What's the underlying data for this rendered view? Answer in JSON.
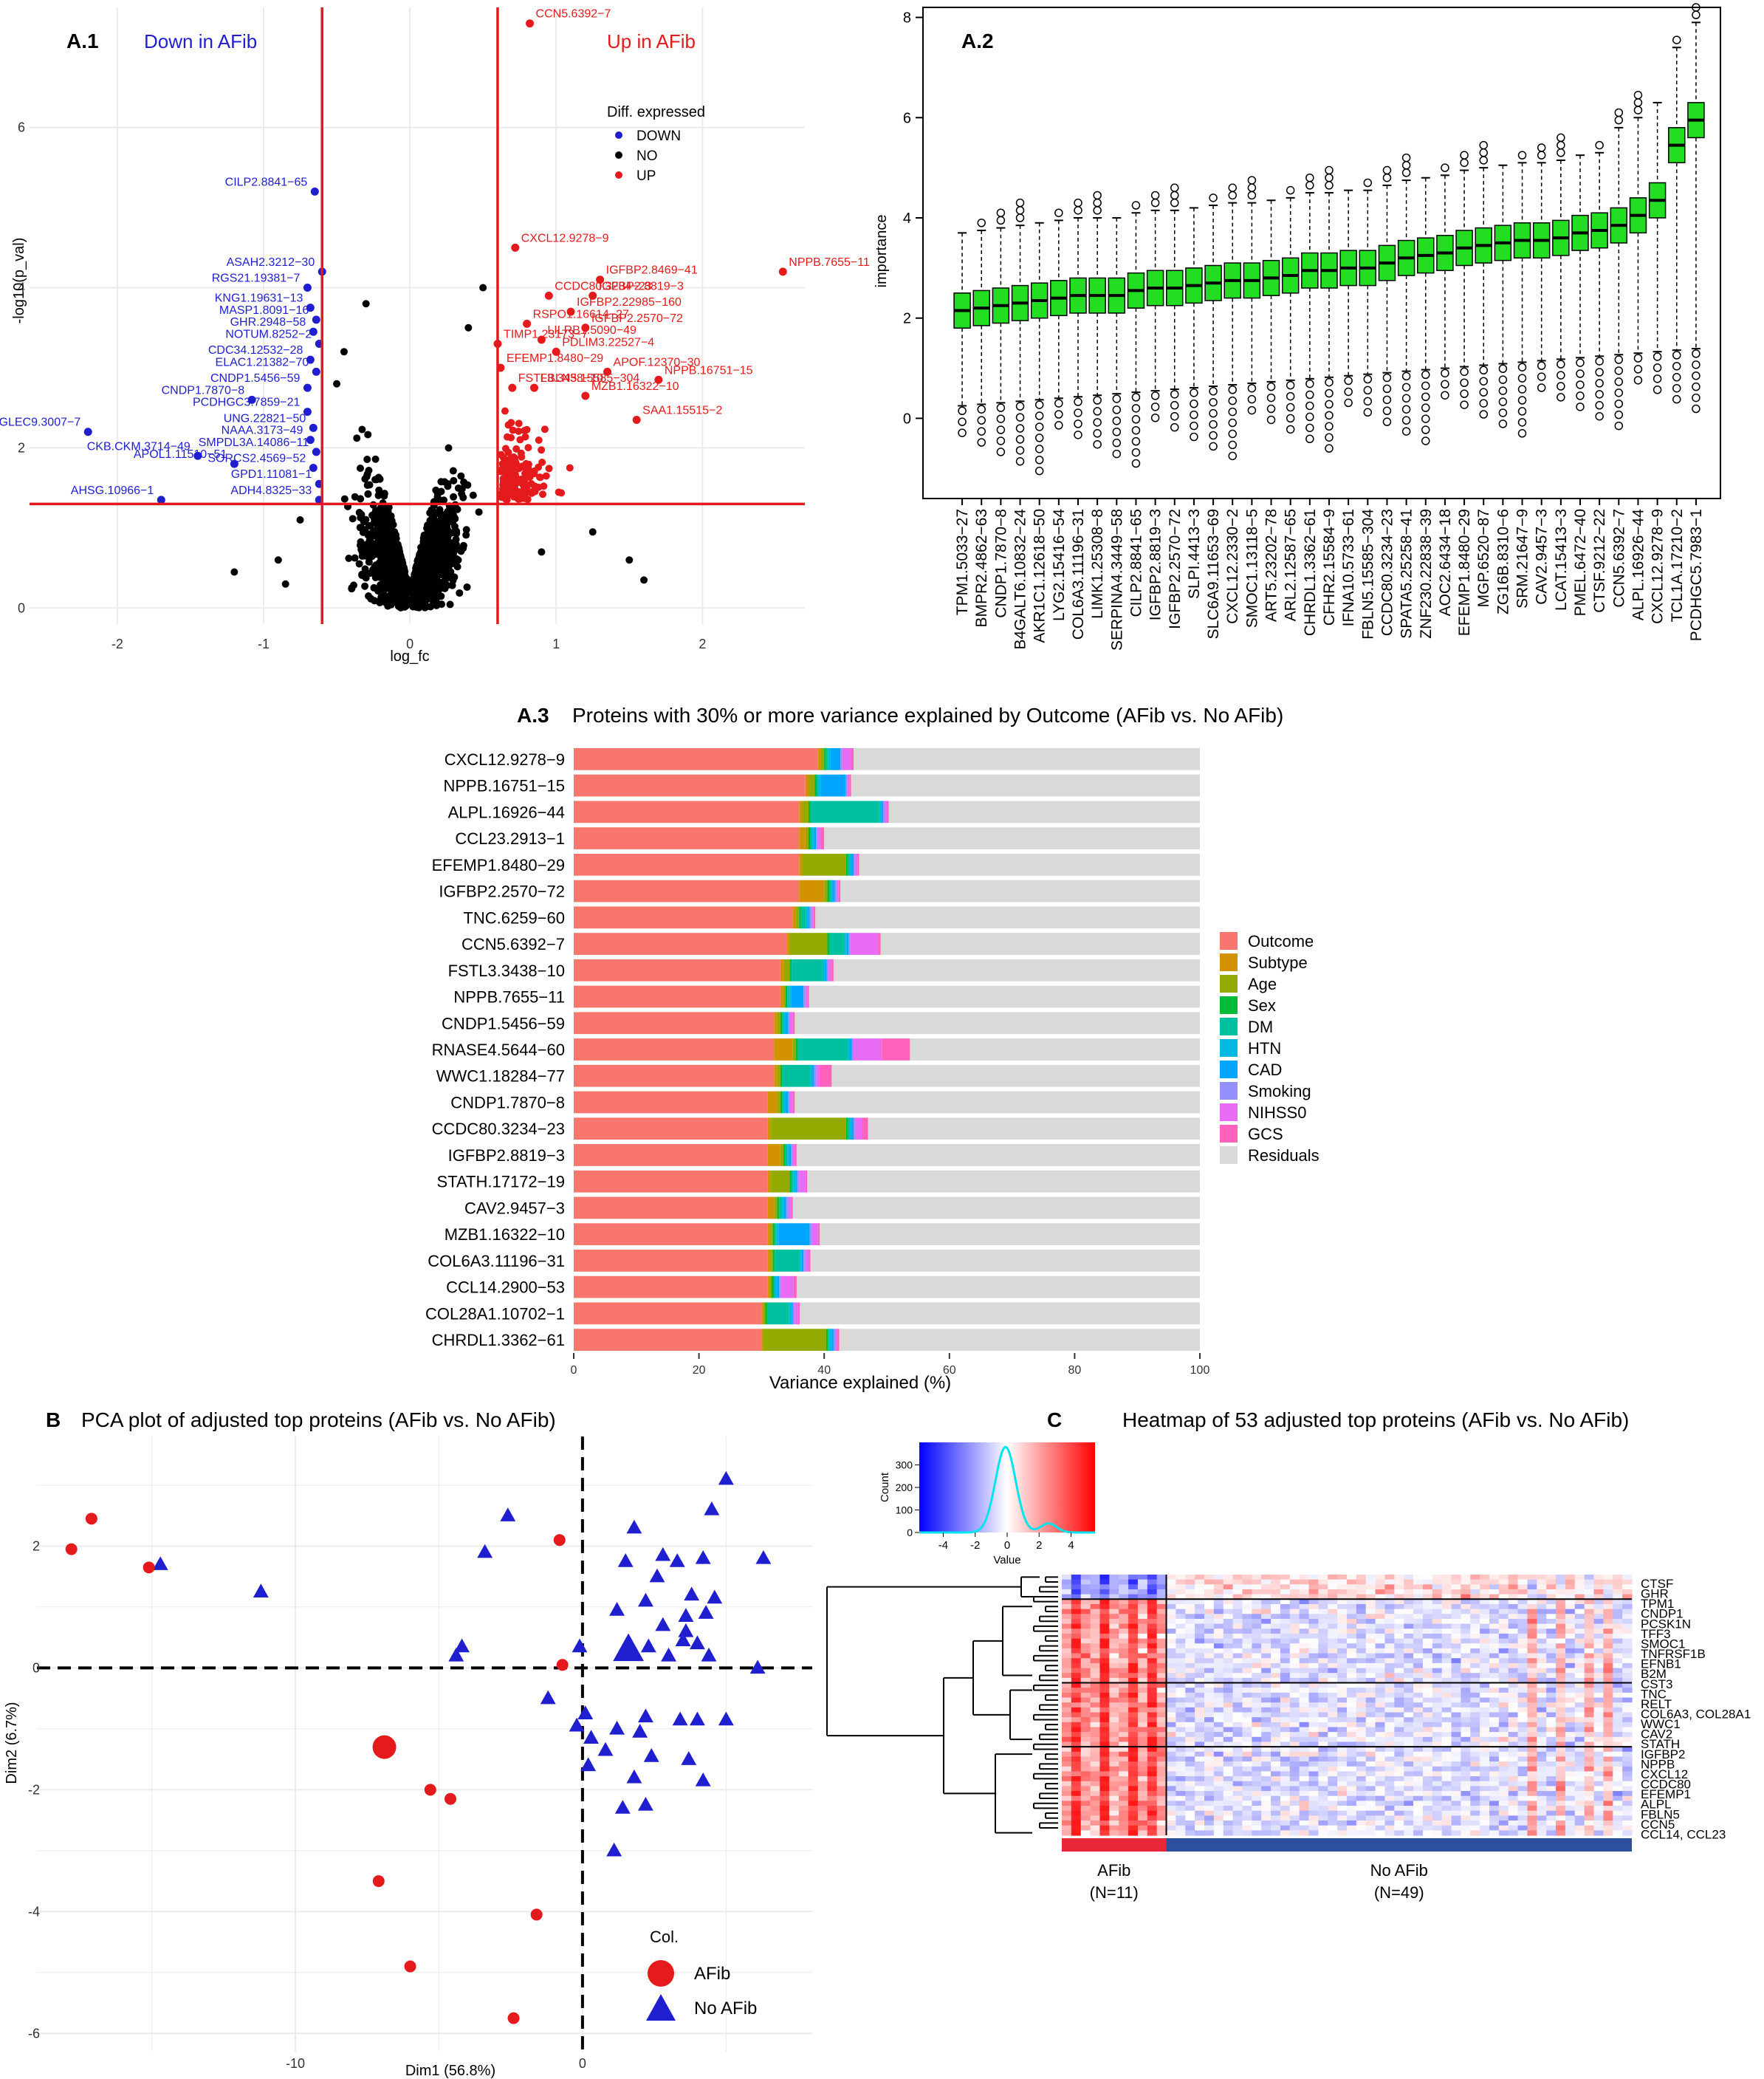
{
  "colors": {
    "red": "#e41a1c",
    "blue": "#1f1fcf",
    "black": "#000000",
    "green": "#22dd22",
    "heatRed": "#e8283a",
    "heatBlue": "#2c4fa0",
    "grid": "#ebebeb"
  },
  "chart_data": [
    {
      "panel": "A.1",
      "type": "scatter",
      "title": "A.1",
      "xlabel": "log_fc",
      "ylabel": "-log10(p_val)",
      "xlim": [
        -2.6,
        2.7
      ],
      "ylim": [
        -0.2,
        7.5
      ],
      "xticks": [
        "-2",
        "-1",
        "0",
        "1",
        "2"
      ],
      "yticks": [
        "0",
        "2",
        "4",
        "6"
      ],
      "xtick_values": [
        -2,
        -1,
        0,
        1,
        2
      ],
      "ytick_values": [
        0,
        2,
        4,
        6
      ],
      "thresholds": {
        "fc": [
          -0.6,
          0.6
        ],
        "p": 1.3
      },
      "region_labels": {
        "down": "Down in AFib",
        "up": "Up in AFib"
      },
      "legend": {
        "title": "Diff. expressed",
        "labels": [
          "DOWN",
          "NO",
          "UP"
        ]
      },
      "down_points": [
        {
          "label": "CILP2.8841−65",
          "x": -0.65,
          "y": 5.2
        },
        {
          "label": "ASAH2.3212−30",
          "x": -0.6,
          "y": 4.2
        },
        {
          "label": "RGS21.19381−7",
          "x": -0.7,
          "y": 4.0
        },
        {
          "label": "KNG1.19631−13",
          "x": -0.68,
          "y": 3.75
        },
        {
          "label": "MASP1.8091−16",
          "x": -0.64,
          "y": 3.6
        },
        {
          "label": "GHR.2948−58",
          "x": -0.66,
          "y": 3.45
        },
        {
          "label": "NOTUM.8252−2",
          "x": -0.62,
          "y": 3.3
        },
        {
          "label": "CDC34.12532−28",
          "x": -0.68,
          "y": 3.1
        },
        {
          "label": "ELAC1.21382−70",
          "x": -0.64,
          "y": 2.95
        },
        {
          "label": "CNDP1.5456−59",
          "x": -0.7,
          "y": 2.75
        },
        {
          "label": "CNDP1.7870−8",
          "x": -1.08,
          "y": 2.6
        },
        {
          "label": "PCDHGC3.7859−21",
          "x": -0.7,
          "y": 2.45
        },
        {
          "label": "SIGLEC9.3007−7",
          "x": -2.2,
          "y": 2.2
        },
        {
          "label": "UNG.22821−50",
          "x": -0.66,
          "y": 2.25
        },
        {
          "label": "NAAA.3173−49",
          "x": -0.68,
          "y": 2.1
        },
        {
          "label": "CKB.CKM.3714−49",
          "x": -1.45,
          "y": 1.9
        },
        {
          "label": "SMPDL3A.14086−11",
          "x": -0.64,
          "y": 1.95
        },
        {
          "label": "APOL1.11510−51",
          "x": -1.2,
          "y": 1.8
        },
        {
          "label": "SORCS2.4569−52",
          "x": -0.66,
          "y": 1.75
        },
        {
          "label": "GPD1.11081−1",
          "x": -0.62,
          "y": 1.55
        },
        {
          "label": "AHSG.10966−1",
          "x": -1.7,
          "y": 1.35
        },
        {
          "label": "ADH4.8325−33",
          "x": -0.62,
          "y": 1.35
        }
      ],
      "up_points": [
        {
          "label": "CCN5.6392−7",
          "x": 0.82,
          "y": 7.3
        },
        {
          "label": "CXCL12.9278−9",
          "x": 0.72,
          "y": 4.5
        },
        {
          "label": "NPPB.7655−11",
          "x": 2.55,
          "y": 4.2
        },
        {
          "label": "IGFBP2.8469−41",
          "x": 1.3,
          "y": 4.1
        },
        {
          "label": "IGFBP2.8819−3",
          "x": 1.25,
          "y": 3.9
        },
        {
          "label": "CCDC80.3234−23",
          "x": 0.95,
          "y": 3.9
        },
        {
          "label": "IGFBP2.22985−160",
          "x": 1.1,
          "y": 3.7
        },
        {
          "label": "IGFBP2.2570−72",
          "x": 1.2,
          "y": 3.5
        },
        {
          "label": "RSPO1.16614−27",
          "x": 0.8,
          "y": 3.55
        },
        {
          "label": "LILRB1.5090−49",
          "x": 0.9,
          "y": 3.35
        },
        {
          "label": "TIMP1.23173−7",
          "x": 0.6,
          "y": 3.3
        },
        {
          "label": "PDLIM3.22527−4",
          "x": 1.0,
          "y": 3.2
        },
        {
          "label": "EFEMP1.8480−29",
          "x": 0.62,
          "y": 3.0
        },
        {
          "label": "APOF.12370−30",
          "x": 1.35,
          "y": 2.95
        },
        {
          "label": "NPPB.16751−15",
          "x": 1.7,
          "y": 2.85
        },
        {
          "label": "FSTL3.3438−10",
          "x": 0.7,
          "y": 2.75
        },
        {
          "label": "FBLN5.15585−304",
          "x": 0.85,
          "y": 2.75
        },
        {
          "label": "MZB1.16322−10",
          "x": 1.2,
          "y": 2.65
        },
        {
          "label": "SAA1.15515−2",
          "x": 1.55,
          "y": 2.35
        }
      ]
    },
    {
      "panel": "A.2",
      "type": "box",
      "title": "A.2",
      "ylabel": "importance",
      "ylim": [
        -1.6,
        8.2
      ],
      "yticks": [
        "0",
        "2",
        "4",
        "6",
        "8"
      ],
      "ytick_values": [
        0,
        2,
        4,
        6,
        8
      ],
      "categories": [
        "TPM1.5033−27",
        "BMPR2.4862−63",
        "CNDP1.7870−8",
        "B4GALT6.10832−24",
        "AKR1C1.12618−50",
        "LYG2.15416−54",
        "COL6A3.11196−31",
        "LIMK1.25308−8",
        "SERPINA4.3449−58",
        "CILP2.8841−65",
        "IGFBP2.8819−3",
        "IGFBP2.2570−72",
        "SLPI.4413−3",
        "SLC6A9.11653−69",
        "CXCL12.2330−2",
        "SMOC1.13118−5",
        "ART5.23202−78",
        "ARL2.12587−65",
        "CHRDL1.3362−61",
        "CFHR2.15584−9",
        "IFNA10.5733−61",
        "FBLN5.15585−304",
        "CCDC80.3234−23",
        "SPATA5.25258−41",
        "ZNF230.22838−39",
        "AOC2.6434−18",
        "EFEMP1.8480−29",
        "MGP.6520−87",
        "ZG16B.8310−6",
        "SRM.21647−9",
        "CAV2.9457−3",
        "LCAT.15413−3",
        "PMEL.6472−40",
        "CTSF.9212−22",
        "CCN5.6392−7",
        "ALPL.16926−44",
        "CXCL12.9278−9",
        "TCL1A.17210−2",
        "PCDHGC5.7983−1"
      ],
      "medians": [
        2.15,
        2.2,
        2.25,
        2.3,
        2.35,
        2.4,
        2.45,
        2.45,
        2.45,
        2.55,
        2.6,
        2.6,
        2.65,
        2.7,
        2.75,
        2.75,
        2.8,
        2.85,
        2.95,
        2.95,
        3.0,
        3.0,
        3.1,
        3.2,
        3.25,
        3.3,
        3.4,
        3.45,
        3.5,
        3.55,
        3.55,
        3.6,
        3.7,
        3.75,
        3.85,
        4.05,
        4.35,
        5.45,
        5.95
      ]
    },
    {
      "panel": "A.3",
      "type": "bar",
      "orientation": "horizontal",
      "stacked": true,
      "title": "Proteins with 30% or more variance explained by Outcome (AFib vs. No AFib)",
      "panel_tag": "A.3",
      "xlabel": "Variance explained (%)",
      "xlim": [
        0,
        100
      ],
      "xticks": [
        "0",
        "20",
        "40",
        "60",
        "80",
        "100"
      ],
      "xtick_values": [
        0,
        20,
        40,
        60,
        80,
        100
      ],
      "categories": [
        "CXCL12.9278−9",
        "NPPB.16751−15",
        "ALPL.16926−44",
        "CCL23.2913−1",
        "EFEMP1.8480−29",
        "IGFBP2.2570−72",
        "TNC.6259−60",
        "CCN5.6392−7",
        "FSTL3.3438−10",
        "NPPB.7655−11",
        "CNDP1.5456−59",
        "RNASE4.5644−60",
        "WWC1.18284−77",
        "CNDP1.7870−8",
        "CCDC80.3234−23",
        "IGFBP2.8819−3",
        "STATH.17172−19",
        "CAV2.9457−3",
        "MZB1.16322−10",
        "COL6A3.11196−31",
        "CCL14.2900−53",
        "COL28A1.10702−1",
        "CHRDL1.3362−61"
      ],
      "series": [
        {
          "name": "Outcome",
          "color": "#f8766d",
          "values": [
            39,
            37,
            36,
            36,
            36,
            36,
            35,
            34,
            33,
            33,
            32,
            32,
            32,
            31,
            31,
            31,
            31,
            31,
            31,
            31,
            31,
            30,
            30
          ]
        },
        {
          "name": "Subtype",
          "color": "#d39200",
          "values": [
            0.5,
            0.5,
            0.5,
            1,
            0.5,
            4,
            0.5,
            0.5,
            0.5,
            0.5,
            0.5,
            3,
            0.5,
            1.5,
            0.5,
            2,
            0.5,
            1,
            0.5,
            0.5,
            0.3,
            0.3,
            0.3
          ]
        },
        {
          "name": "Age",
          "color": "#93aa00",
          "values": [
            0.5,
            1,
            1,
            0.5,
            7,
            0.5,
            0.5,
            6,
            1,
            0.3,
            0.5,
            0.5,
            0.5,
            0.5,
            12,
            0.5,
            3,
            0.5,
            0.3,
            0.3,
            0.3,
            0.3,
            10
          ]
        },
        {
          "name": "Sex",
          "color": "#00ba38",
          "values": [
            0.3,
            0.3,
            0.3,
            0.3,
            0.3,
            0.3,
            0.3,
            0.3,
            0.3,
            0.3,
            0.3,
            0.3,
            0.3,
            0.3,
            0.3,
            0.3,
            0.3,
            0.3,
            0.3,
            0.3,
            0.3,
            0.3,
            0.3
          ]
        },
        {
          "name": "DM",
          "color": "#00c19f",
          "values": [
            0.3,
            0.3,
            11,
            0.3,
            0.3,
            0.3,
            0.8,
            2.5,
            5,
            0.3,
            0.3,
            8,
            4.5,
            0.3,
            0.3,
            0.3,
            0.3,
            0.5,
            0.3,
            4,
            0.3,
            3.5,
            0.3
          ]
        },
        {
          "name": "HTN",
          "color": "#00b9e3",
          "values": [
            0.5,
            0.3,
            0.3,
            0.3,
            0.3,
            0.3,
            0.3,
            0.3,
            0.3,
            0.3,
            0.3,
            0.3,
            0.3,
            0.3,
            0.3,
            0.3,
            0.3,
            0.3,
            0.3,
            0.3,
            0.3,
            0.3,
            0.3
          ]
        },
        {
          "name": "CAD",
          "color": "#00a5ff",
          "values": [
            1.5,
            4,
            0.3,
            0.3,
            0.3,
            0.3,
            0.3,
            0.3,
            0.3,
            2,
            0.3,
            0.3,
            0.3,
            0.3,
            0.3,
            0.3,
            0.3,
            0.3,
            5,
            0.3,
            0.3,
            0.3,
            0.3
          ]
        },
        {
          "name": "Smoking",
          "color": "#9590ff",
          "values": [
            0.3,
            0.3,
            0.3,
            0.3,
            0.3,
            0.3,
            0.3,
            0.3,
            0.3,
            0.3,
            0.3,
            0.3,
            0.3,
            0.3,
            0.3,
            0.3,
            0.3,
            0.3,
            0.3,
            0.3,
            0.3,
            0.3,
            0.3
          ]
        },
        {
          "name": "NIHSS0",
          "color": "#e76bf3",
          "values": [
            1.5,
            0.3,
            0.3,
            0.5,
            0.3,
            0.3,
            0.3,
            4.5,
            0.5,
            0.3,
            0.5,
            4.5,
            0.5,
            0.5,
            1,
            0.3,
            1,
            0.5,
            1,
            0.5,
            2,
            0.5,
            0.3
          ]
        },
        {
          "name": "GCS",
          "color": "#ff62bc",
          "values": [
            0.3,
            0.3,
            0.3,
            0.5,
            0.3,
            0.3,
            0.3,
            0.3,
            0.3,
            0.3,
            0.3,
            4.5,
            2,
            0.3,
            1,
            0.3,
            0.3,
            0.3,
            0.3,
            0.3,
            0.5,
            0.3,
            0.3
          ]
        }
      ],
      "residual_label": "Residuals",
      "residual_color": "#d9d9d9"
    },
    {
      "panel": "B",
      "type": "scatter",
      "title": "PCA plot of adjusted top proteins (AFib vs. No AFib)",
      "panel_tag": "B",
      "xlabel": "Dim1 (56.8%)",
      "ylabel": "Dim2 (6.7%)",
      "xlim": [
        -19,
        8
      ],
      "ylim": [
        -6.3,
        3.8
      ],
      "xticks": [
        "-10",
        "0"
      ],
      "xtick_values": [
        -10,
        0
      ],
      "yticks": [
        "2",
        "0",
        "-2",
        "-4",
        "-6"
      ],
      "ytick_values": [
        2,
        0,
        -2,
        -4,
        -6
      ],
      "legend": {
        "title": "Col.",
        "labels": [
          "AFib",
          "No AFib"
        ]
      },
      "afib": [
        [
          -17.1,
          2.45
        ],
        [
          -17.8,
          1.95
        ],
        [
          -15.1,
          1.65
        ],
        [
          -0.8,
          2.1
        ],
        [
          -0.7,
          0.05
        ],
        [
          -6.9,
          -1.3
        ],
        [
          -5.3,
          -2.0
        ],
        [
          -4.6,
          -2.15
        ],
        [
          -7.1,
          -3.5
        ],
        [
          -1.6,
          -4.05
        ],
        [
          -6.0,
          -4.9
        ],
        [
          -2.4,
          -5.75
        ]
      ],
      "afib_centroid": [
        -6.9,
        -1.3
      ],
      "noafib": [
        [
          5.0,
          3.1
        ],
        [
          4.5,
          2.6
        ],
        [
          6.3,
          1.8
        ],
        [
          -2.6,
          2.5
        ],
        [
          -3.4,
          1.9
        ],
        [
          -11.2,
          1.25
        ],
        [
          -14.7,
          1.7
        ],
        [
          1.8,
          2.3
        ],
        [
          1.5,
          1.75
        ],
        [
          2.8,
          1.85
        ],
        [
          3.3,
          1.75
        ],
        [
          4.2,
          1.8
        ],
        [
          2.6,
          1.5
        ],
        [
          2.2,
          1.1
        ],
        [
          3.8,
          1.2
        ],
        [
          4.6,
          1.15
        ],
        [
          3.6,
          0.85
        ],
        [
          4.3,
          0.9
        ],
        [
          1.2,
          0.95
        ],
        [
          2.8,
          0.7
        ],
        [
          3.6,
          0.6
        ],
        [
          4.0,
          0.4
        ],
        [
          4.4,
          0.2
        ],
        [
          3.0,
          0.2
        ],
        [
          2.3,
          0.35
        ],
        [
          1.6,
          0.4
        ],
        [
          3.5,
          0.45
        ],
        [
          -0.1,
          0.35
        ],
        [
          -4.2,
          0.35
        ],
        [
          -4.4,
          0.2
        ],
        [
          6.1,
          0.0
        ],
        [
          -1.2,
          -0.5
        ],
        [
          0.1,
          -0.75
        ],
        [
          -0.2,
          -0.95
        ],
        [
          2.2,
          -0.8
        ],
        [
          3.4,
          -0.85
        ],
        [
          4.0,
          -0.85
        ],
        [
          5.0,
          -0.85
        ],
        [
          1.2,
          -1.0
        ],
        [
          2.0,
          -1.05
        ],
        [
          0.3,
          -1.15
        ],
        [
          0.8,
          -1.35
        ],
        [
          2.4,
          -1.45
        ],
        [
          0.2,
          -1.6
        ],
        [
          3.7,
          -1.5
        ],
        [
          4.2,
          -1.85
        ],
        [
          1.8,
          -1.8
        ],
        [
          1.4,
          -2.3
        ],
        [
          2.2,
          -2.25
        ],
        [
          1.1,
          -3.0
        ]
      ],
      "noafib_centroid": [
        1.6,
        0.3
      ]
    },
    {
      "panel": "C",
      "type": "heatmap",
      "title": "Heatmap of 53 adjusted top proteins (AFib vs. No AFib)",
      "panel_tag": "C",
      "key": {
        "xlabel": "Value",
        "ylabel": "Count",
        "xticks": [
          "-4",
          "-2",
          "0",
          "2",
          "4"
        ],
        "xtick_values": [
          -4,
          -2,
          0,
          2,
          4
        ],
        "yticks": [
          "0",
          "100",
          "200",
          "300"
        ],
        "ytick_values": [
          0,
          100,
          200,
          300
        ],
        "xlim": [
          -5.5,
          5.5
        ],
        "ylim": [
          0,
          400
        ]
      },
      "row_labels": [
        "CTSF",
        "GHR",
        "TPM1",
        "CNDP1",
        "PCSK1N",
        "TFF3",
        "SMOC1",
        "TNFRSF1B",
        "EFNB1",
        "B2M",
        "CST3",
        "TNC",
        "RELT",
        "COL6A3, COL28A1",
        "WWC1",
        "CAV2",
        "STATH",
        "IGFBP2",
        "NPPB",
        "CXCL12",
        "CCDC80",
        "EFEMP1",
        "ALPL",
        "FBLN5",
        "CCN5",
        "CCL14, CCL23"
      ],
      "groups": [
        {
          "label": "AFib",
          "n_label": "(N=11)",
          "n": 11
        },
        {
          "label": "No AFib",
          "n_label": "(N=49)",
          "n": 49
        }
      ]
    }
  ]
}
